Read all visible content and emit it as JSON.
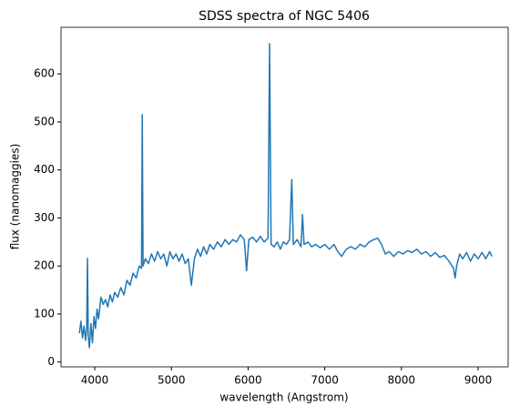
{
  "chart_data": {
    "type": "line",
    "title": "SDSS spectra of NGC 5406",
    "xlabel": "wavelength (Angstrom)",
    "ylabel": "flux (nanomaggies)",
    "x": [
      3800,
      3820,
      3840,
      3860,
      3880,
      3895,
      3905,
      3915,
      3930,
      3950,
      3970,
      3990,
      4010,
      4030,
      4050,
      4080,
      4110,
      4140,
      4170,
      4200,
      4230,
      4260,
      4300,
      4340,
      4380,
      4420,
      4460,
      4500,
      4540,
      4580,
      4610,
      4620,
      4630,
      4660,
      4700,
      4740,
      4780,
      4820,
      4860,
      4900,
      4940,
      4980,
      5020,
      5060,
      5100,
      5140,
      5180,
      5220,
      5260,
      5300,
      5340,
      5380,
      5420,
      5460,
      5500,
      5550,
      5600,
      5650,
      5700,
      5750,
      5800,
      5850,
      5900,
      5950,
      5980,
      6010,
      6060,
      6110,
      6160,
      6210,
      6260,
      6280,
      6300,
      6340,
      6380,
      6420,
      6460,
      6500,
      6540,
      6570,
      6590,
      6640,
      6690,
      6710,
      6730,
      6780,
      6830,
      6880,
      6940,
      7000,
      7060,
      7120,
      7170,
      7220,
      7280,
      7340,
      7400,
      7460,
      7520,
      7580,
      7640,
      7690,
      7740,
      7790,
      7840,
      7900,
      7960,
      8020,
      8080,
      8140,
      8200,
      8260,
      8320,
      8380,
      8440,
      8500,
      8560,
      8620,
      8680,
      8700,
      8720,
      8760,
      8800,
      8850,
      8900,
      8950,
      9000,
      9050,
      9100,
      9150,
      9180
    ],
    "series": [
      {
        "name": "flux",
        "color": "#1f77b4",
        "values": [
          60,
          85,
          50,
          75,
          45,
          70,
          216,
          55,
          30,
          80,
          40,
          95,
          70,
          110,
          90,
          135,
          120,
          130,
          115,
          140,
          125,
          145,
          135,
          155,
          140,
          170,
          160,
          185,
          175,
          200,
          195,
          515,
          200,
          215,
          205,
          225,
          210,
          230,
          215,
          225,
          200,
          230,
          215,
          225,
          210,
          225,
          205,
          215,
          160,
          215,
          235,
          220,
          240,
          225,
          245,
          235,
          250,
          240,
          255,
          245,
          255,
          250,
          265,
          255,
          190,
          255,
          260,
          250,
          262,
          250,
          258,
          663,
          245,
          240,
          250,
          235,
          250,
          245,
          255,
          380,
          245,
          255,
          240,
          307,
          245,
          250,
          240,
          245,
          238,
          245,
          235,
          245,
          230,
          220,
          235,
          240,
          235,
          245,
          240,
          250,
          255,
          258,
          245,
          225,
          230,
          220,
          230,
          225,
          232,
          228,
          235,
          225,
          230,
          220,
          228,
          218,
          222,
          210,
          195,
          175,
          200,
          225,
          215,
          228,
          210,
          225,
          215,
          228,
          215,
          230,
          220
        ]
      }
    ],
    "xlim": [
      3560,
      9392
    ],
    "ylim": [
      -10,
      697
    ],
    "xticks": [
      4000,
      5000,
      6000,
      7000,
      8000,
      9000
    ],
    "yticks": [
      0,
      100,
      200,
      300,
      400,
      500,
      600
    ]
  }
}
